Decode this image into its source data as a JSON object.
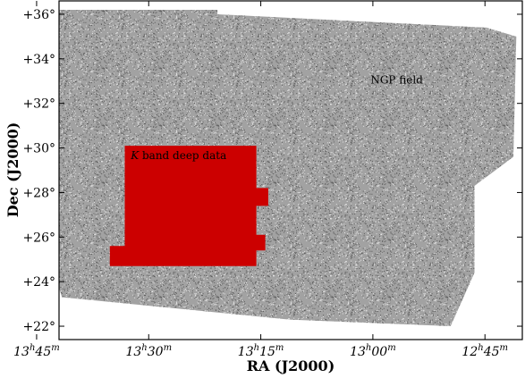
{
  "chart_data": {
    "type": "scatter",
    "title": "",
    "xlabel": "RA (J2000)",
    "ylabel": "Dec (J2000)",
    "x_axis_inverted": true,
    "xlim_deg": [
      205.5,
      190.0
    ],
    "ylim_deg": [
      21.4,
      36.6
    ],
    "x_ticks": [
      {
        "value_deg": 206.25,
        "h": "13",
        "m": "45"
      },
      {
        "value_deg": 202.5,
        "h": "13",
        "m": "30"
      },
      {
        "value_deg": 198.75,
        "h": "13",
        "m": "15"
      },
      {
        "value_deg": 195.0,
        "h": "13",
        "m": "00"
      },
      {
        "value_deg": 191.25,
        "h": "12",
        "m": "45"
      }
    ],
    "y_ticks": [
      {
        "value": 22,
        "label": "+22°"
      },
      {
        "value": 24,
        "label": "+24°"
      },
      {
        "value": 26,
        "label": "+26°"
      },
      {
        "value": 28,
        "label": "+28°"
      },
      {
        "value": 30,
        "label": "+30°"
      },
      {
        "value": 32,
        "label": "+32°"
      },
      {
        "value": 34,
        "label": "+34°"
      },
      {
        "value": 36,
        "label": "+36°"
      }
    ],
    "regions": [
      {
        "label": "NGP field",
        "color": "#9a9a9a",
        "polygon_ra_dec": [
          [
            206.0,
            36.2
          ],
          [
            200.2,
            36.2
          ],
          [
            200.2,
            36.0
          ],
          [
            191.2,
            35.4
          ],
          [
            190.2,
            35.0
          ],
          [
            190.3,
            29.6
          ],
          [
            191.6,
            28.3
          ],
          [
            191.6,
            24.4
          ],
          [
            192.4,
            22.0
          ],
          [
            197.8,
            22.3
          ],
          [
            205.4,
            23.3
          ],
          [
            205.9,
            25.4
          ]
        ]
      },
      {
        "label": "K band deep data",
        "label_k": "K",
        "label_rest": " band deep data",
        "color": "#cc0000",
        "polygon_ra_dec": [
          [
            203.8,
            30.1
          ],
          [
            198.9,
            30.1
          ],
          [
            198.9,
            28.2
          ],
          [
            198.5,
            28.2
          ],
          [
            198.5,
            27.4
          ],
          [
            198.9,
            27.4
          ],
          [
            198.9,
            26.1
          ],
          [
            198.6,
            26.1
          ],
          [
            198.6,
            25.4
          ],
          [
            198.9,
            25.4
          ],
          [
            198.9,
            24.7
          ],
          [
            203.8,
            24.7
          ],
          [
            203.8,
            25.6
          ],
          [
            203.3,
            25.6
          ],
          [
            203.3,
            30.1
          ]
        ]
      }
    ],
    "legend": "none",
    "grid": false
  }
}
